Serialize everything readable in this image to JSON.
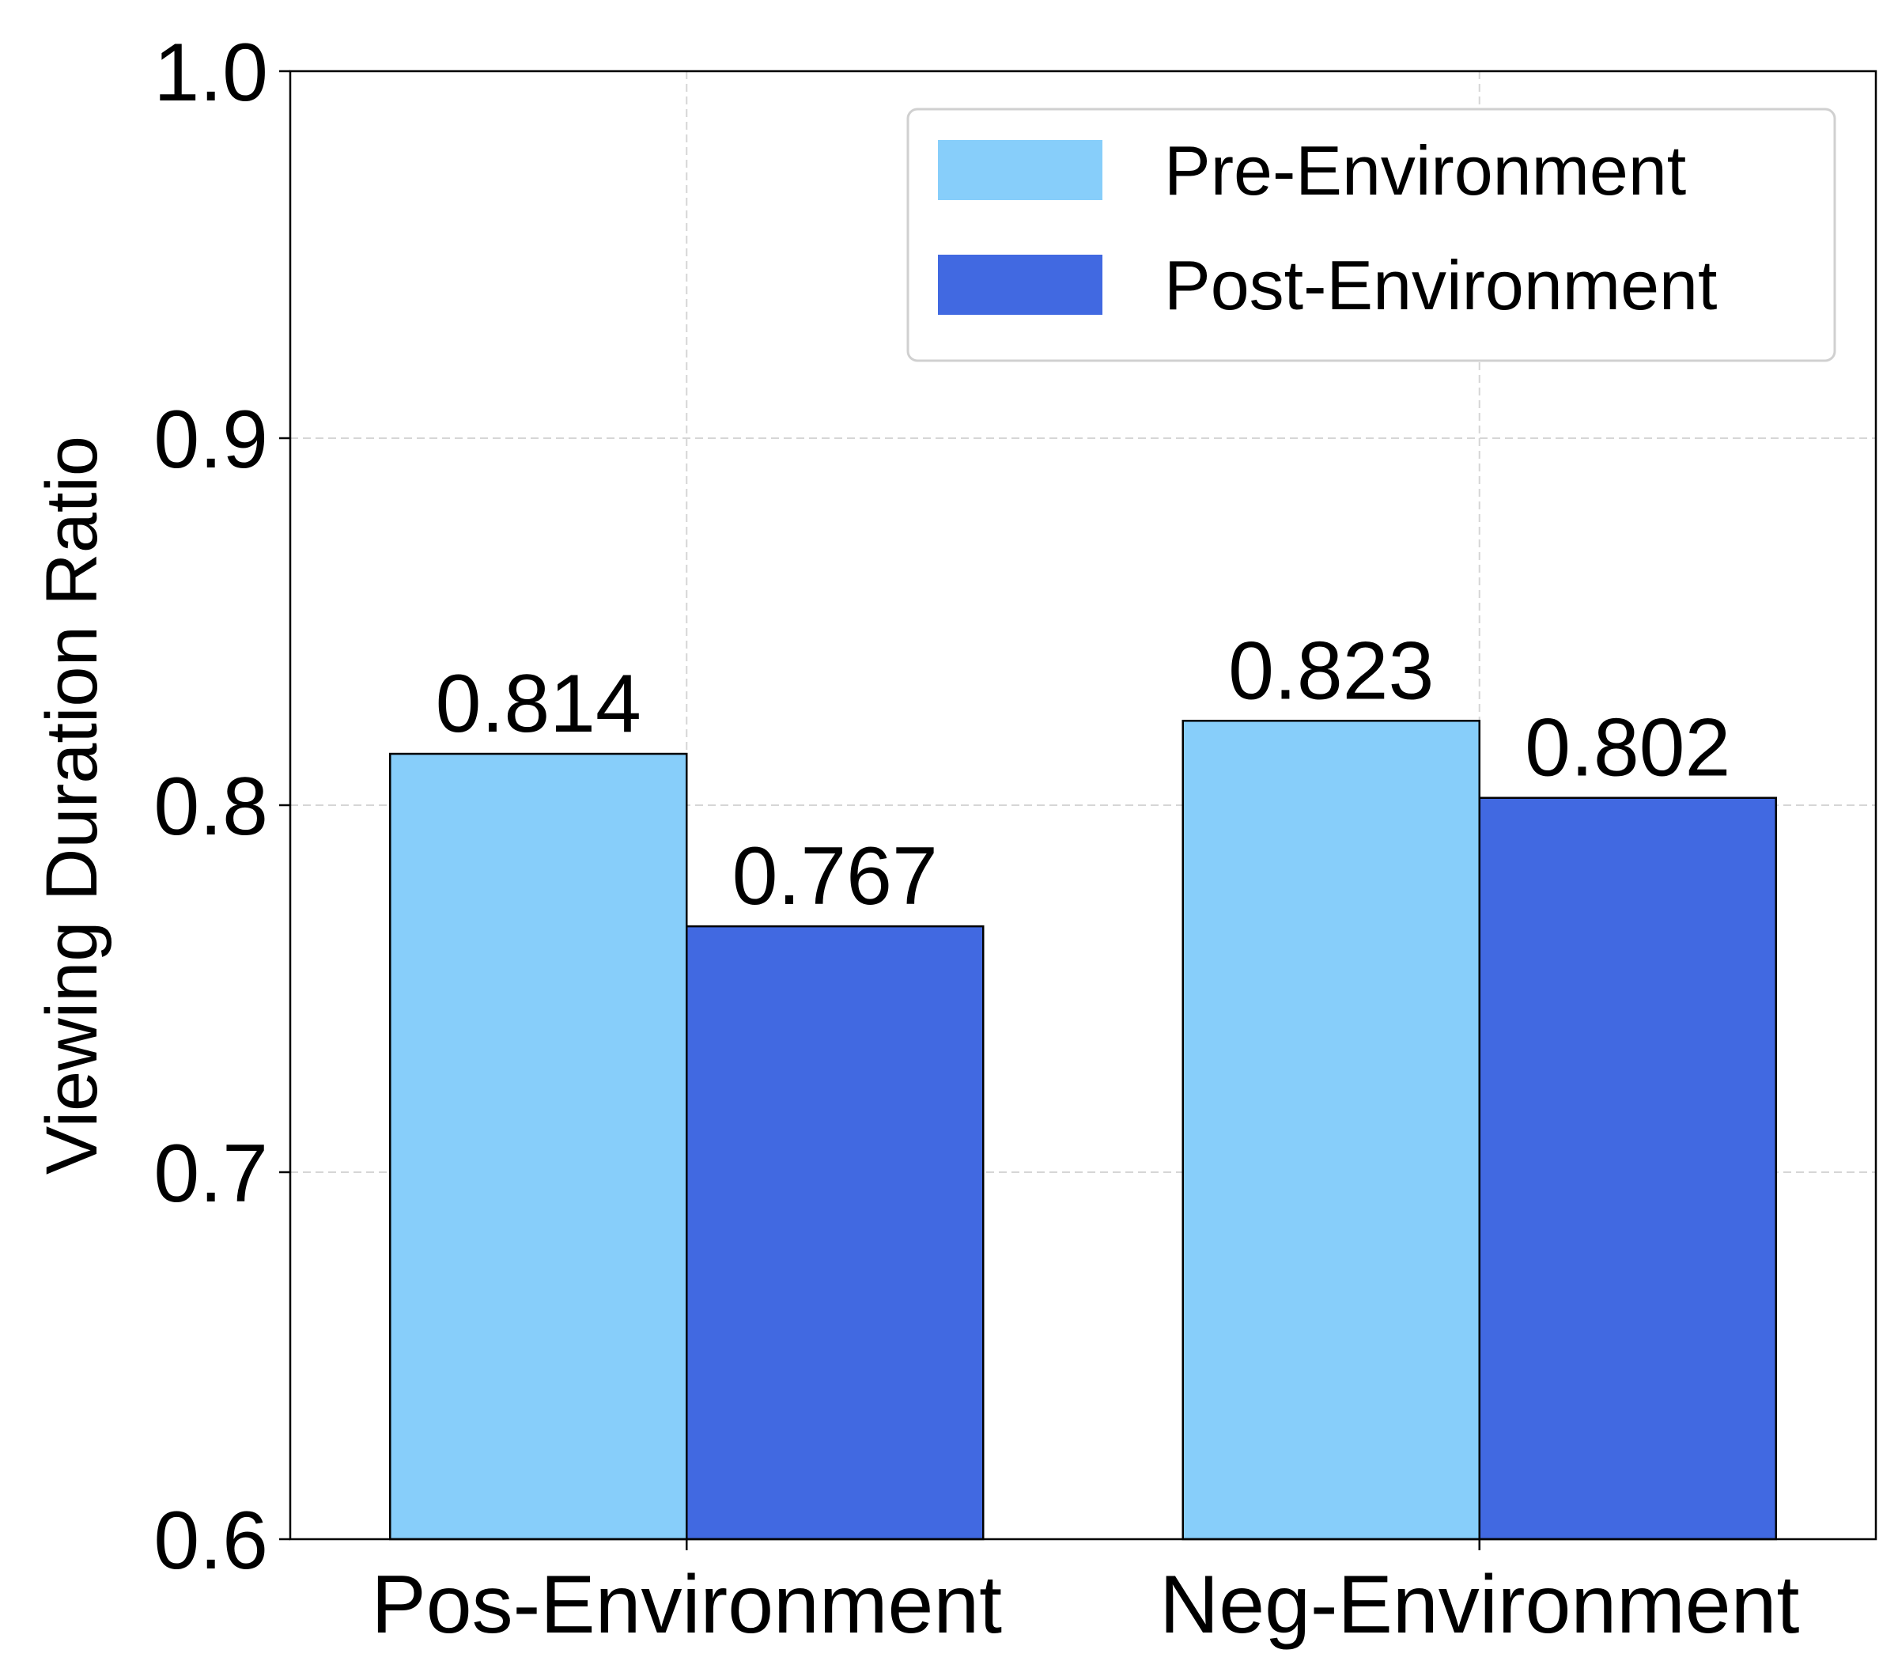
{
  "chart_data": {
    "type": "bar",
    "categories": [
      "Pos-Environment",
      "Neg-Environment"
    ],
    "series": [
      {
        "name": "Pre-Environment",
        "values": [
          0.814,
          0.823
        ],
        "labels": [
          "0.814",
          "0.823"
        ],
        "color": "#87CEFA"
      },
      {
        "name": "Post-Environment",
        "values": [
          0.767,
          0.802
        ],
        "labels": [
          "0.767",
          "0.802"
        ],
        "color": "#4169E1"
      }
    ],
    "title": "",
    "xlabel": "",
    "ylabel": "Viewing Duration Ratio",
    "ylim": [
      0.6,
      1.0
    ],
    "yticks": [
      0.6,
      0.7,
      0.8,
      0.9,
      1.0
    ],
    "ytick_labels": [
      "0.6",
      "0.7",
      "0.8",
      "0.9",
      "1.0"
    ],
    "grid": true,
    "legend_position": "top-right"
  }
}
